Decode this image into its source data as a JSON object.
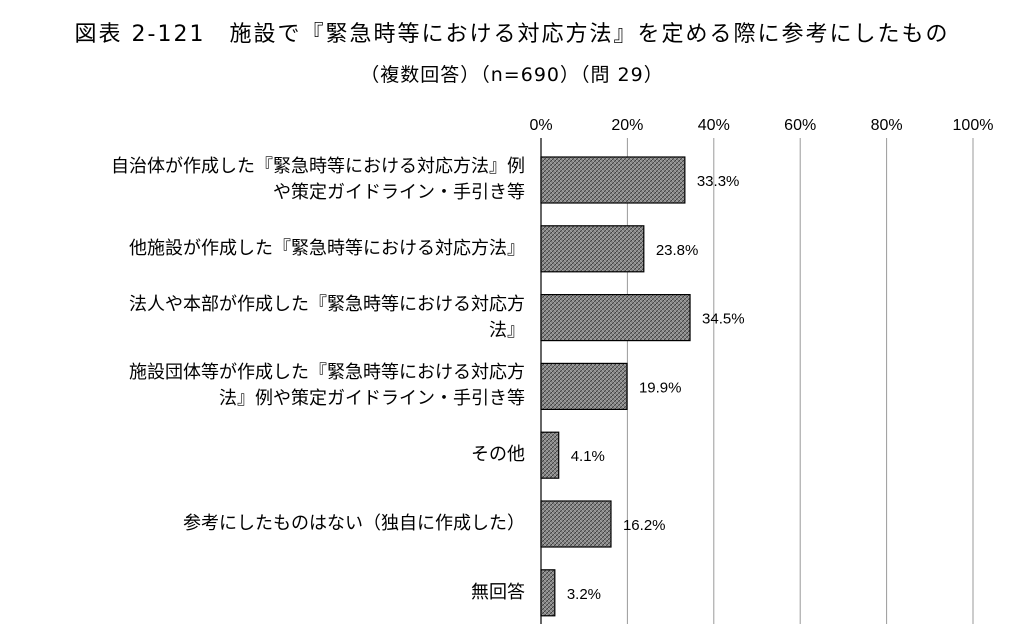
{
  "chart_data": {
    "type": "bar",
    "orientation": "horizontal",
    "title": "図表 2-121　施設で『緊急時等における対応方法』を定める際に参考にしたもの",
    "subtitle": "（複数回答）（n=690）（問 29）",
    "categories": [
      [
        "自治体が作成した『緊急時等における対応方法』例",
        "や策定ガイドライン・手引き等"
      ],
      [
        "他施設が作成した『緊急時等における対応方法』"
      ],
      [
        "法人や本部が作成した『緊急時等における対応方",
        "法』"
      ],
      [
        "施設団体等が作成した『緊急時等における対応方",
        "法』例や策定ガイドライン・手引き等"
      ],
      [
        "その他"
      ],
      [
        "参考にしたものはない（独自に作成した）"
      ],
      [
        "無回答"
      ]
    ],
    "values": [
      33.3,
      23.8,
      34.5,
      19.9,
      4.1,
      16.2,
      3.2
    ],
    "value_labels": [
      "33.3%",
      "23.8%",
      "34.5%",
      "19.9%",
      "4.1%",
      "16.2%",
      "3.2%"
    ],
    "xlim": [
      0,
      100
    ],
    "ticks": [
      0,
      20,
      40,
      60,
      80,
      100
    ],
    "tick_labels": [
      "0%",
      "20%",
      "40%",
      "60%",
      "80%",
      "100%"
    ],
    "grid": true,
    "bar_color": "#808080"
  }
}
